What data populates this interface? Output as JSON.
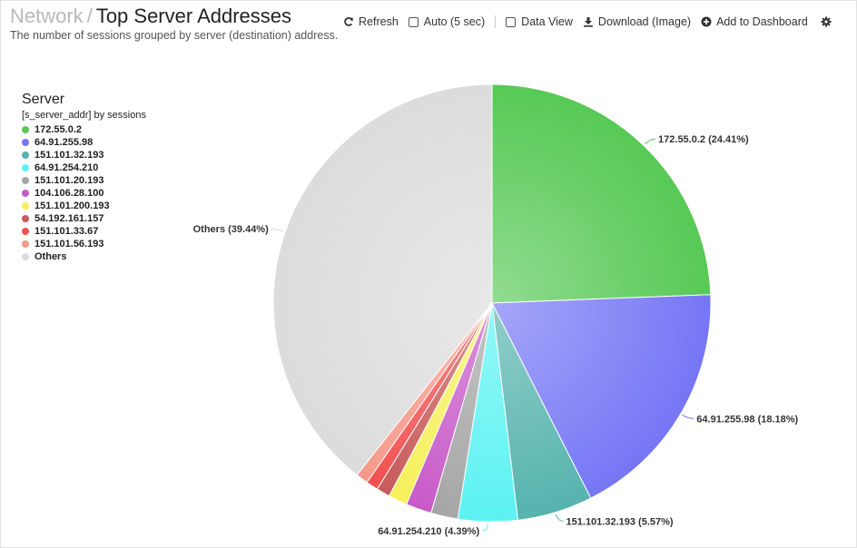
{
  "header": {
    "breadcrumb": "Network",
    "separator": "/",
    "title": "Top Server Addresses",
    "subtitle": "The number of sessions grouped by server (destination) address."
  },
  "toolbar": {
    "refresh_label": "Refresh",
    "auto_label": "Auto (5 sec)",
    "data_view_label": "Data View",
    "download_label": "Download (Image)",
    "dashboard_label": "Add to Dashboard"
  },
  "legend": {
    "title": "Server",
    "subtitle": "[s_server_addr] by sessions",
    "items": [
      {
        "label": "172.55.0.2",
        "color": "#57c955"
      },
      {
        "label": "64.91.255.98",
        "color": "#7676f5"
      },
      {
        "label": "151.101.32.193",
        "color": "#56b3ae"
      },
      {
        "label": "64.91.254.210",
        "color": "#5cf2f2"
      },
      {
        "label": "151.101.20.193",
        "color": "#a6a6a6"
      },
      {
        "label": "104.106.28.100",
        "color": "#c85ac8"
      },
      {
        "label": "151.101.200.193",
        "color": "#f5f05a"
      },
      {
        "label": "54.192.161.157",
        "color": "#c85a5a"
      },
      {
        "label": "151.101.33.67",
        "color": "#f25050"
      },
      {
        "label": "151.101.56.193",
        "color": "#f5998a"
      },
      {
        "label": "Others",
        "color": "#dcdcdc"
      }
    ]
  },
  "chart_data": {
    "type": "pie",
    "slices": [
      {
        "label": "172.55.0.2",
        "value": 24.41,
        "color": "#57c955",
        "data_label": "172.55.0.2 (24.41%)"
      },
      {
        "label": "64.91.255.98",
        "value": 18.18,
        "color": "#7676f5",
        "data_label": "64.91.255.98 (18.18%)"
      },
      {
        "label": "151.101.32.193",
        "value": 5.57,
        "color": "#56b3ae",
        "data_label": "151.101.32.193 (5.57%)"
      },
      {
        "label": "64.91.254.210",
        "value": 4.39,
        "color": "#5cf2f2",
        "data_label": "64.91.254.210 (4.39%)"
      },
      {
        "label": "151.101.20.193",
        "value": 2.0,
        "color": "#a6a6a6",
        "data_label": ""
      },
      {
        "label": "104.106.28.100",
        "value": 1.9,
        "color": "#c85ac8",
        "data_label": ""
      },
      {
        "label": "151.101.200.193",
        "value": 1.4,
        "color": "#f5f05a",
        "data_label": ""
      },
      {
        "label": "54.192.161.157",
        "value": 1.0,
        "color": "#c85a5a",
        "data_label": ""
      },
      {
        "label": "151.101.33.67",
        "value": 0.9,
        "color": "#f25050",
        "data_label": ""
      },
      {
        "label": "151.101.56.193",
        "value": 0.9,
        "color": "#f5998a",
        "data_label": ""
      },
      {
        "label": "Others",
        "value": 39.44,
        "color": "#dcdcdc",
        "data_label": "Others (39.44%)"
      }
    ]
  }
}
